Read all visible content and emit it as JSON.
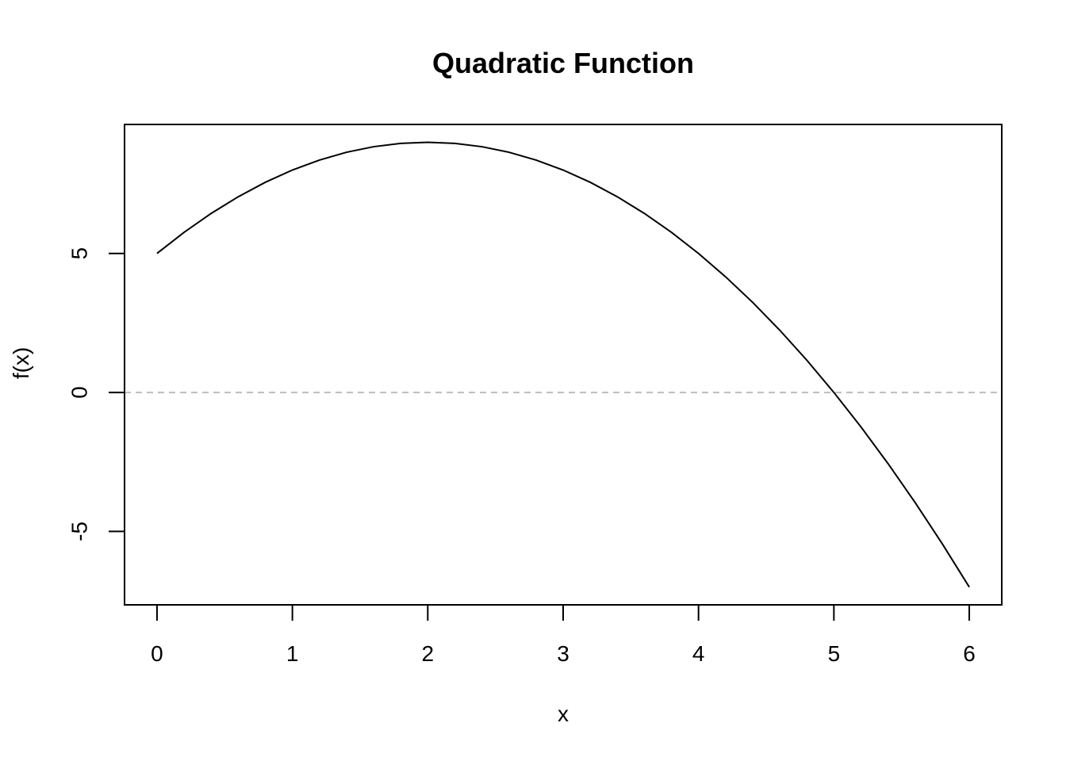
{
  "chart_data": {
    "type": "line",
    "title": "Quadratic Function",
    "xlabel": "x",
    "ylabel": "f(x)",
    "xlim": [
      0,
      6
    ],
    "ylim": [
      -7,
      9
    ],
    "x_ticks": [
      0,
      1,
      2,
      3,
      4,
      5,
      6
    ],
    "x_tick_labels": [
      "0",
      "1",
      "2",
      "3",
      "4",
      "5",
      "6"
    ],
    "y_ticks": [
      -5,
      0,
      5
    ],
    "y_tick_labels": [
      "-5",
      "0",
      "5"
    ],
    "grid": false,
    "reference_line": {
      "y": 0,
      "style": "dashed",
      "color": "#bdbdbd"
    },
    "series": [
      {
        "x": [
          0,
          0.2,
          0.4,
          0.6,
          0.8,
          1.0,
          1.2,
          1.4,
          1.6,
          1.8,
          2.0,
          2.2,
          2.4,
          2.6,
          2.8,
          3.0,
          3.2,
          3.4,
          3.6,
          3.8,
          4.0,
          4.2,
          4.4,
          4.6,
          4.8,
          5.0,
          5.2,
          5.4,
          5.6,
          5.8,
          6.0
        ],
        "y": [
          5,
          5.76,
          6.44,
          7.04,
          7.56,
          8,
          8.36,
          8.64,
          8.84,
          8.96,
          9,
          8.96,
          8.84,
          8.64,
          8.36,
          8,
          7.56,
          7.04,
          6.44,
          5.76,
          5,
          4.16,
          3.24,
          2.24,
          1.16,
          0,
          -1.24,
          -2.56,
          -3.96,
          -5.44,
          -7
        ],
        "color": "#000000"
      }
    ]
  }
}
